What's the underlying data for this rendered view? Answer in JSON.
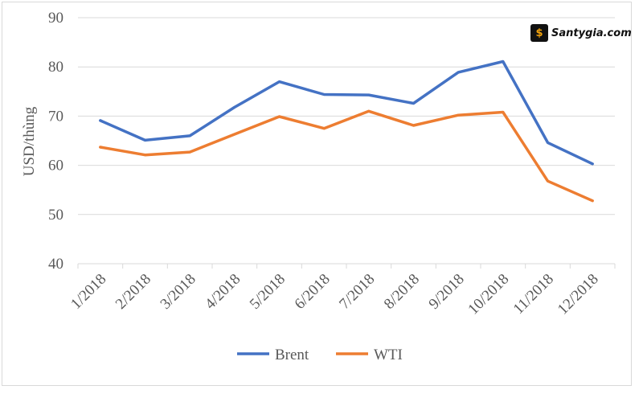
{
  "watermark": {
    "logo_glyph": "$",
    "text": "Santygia.com"
  },
  "colors": {
    "brent": "#4472c4",
    "wti": "#ed7d31",
    "grid": "#d9d9d9",
    "text": "#595959"
  },
  "chart_data": {
    "type": "line",
    "categories": [
      "1/2018",
      "2/2018",
      "3/2018",
      "4/2018",
      "5/2018",
      "6/2018",
      "7/2018",
      "8/2018",
      "9/2018",
      "10/2018",
      "11/2018",
      "12/2018"
    ],
    "series": [
      {
        "name": "Brent",
        "values": [
          69.1,
          65.1,
          66.0,
          71.8,
          77.0,
          74.4,
          74.3,
          72.6,
          78.9,
          81.1,
          64.6,
          60.3
        ]
      },
      {
        "name": "WTI",
        "values": [
          63.7,
          62.1,
          62.7,
          66.3,
          69.9,
          67.5,
          71.0,
          68.1,
          70.2,
          70.8,
          56.8,
          52.8
        ]
      }
    ],
    "ylabel": "USD/thùng",
    "ylim": [
      40,
      90
    ],
    "yticks": [
      40,
      50,
      60,
      70,
      80,
      90
    ],
    "grid": true,
    "legend": "bottom"
  }
}
